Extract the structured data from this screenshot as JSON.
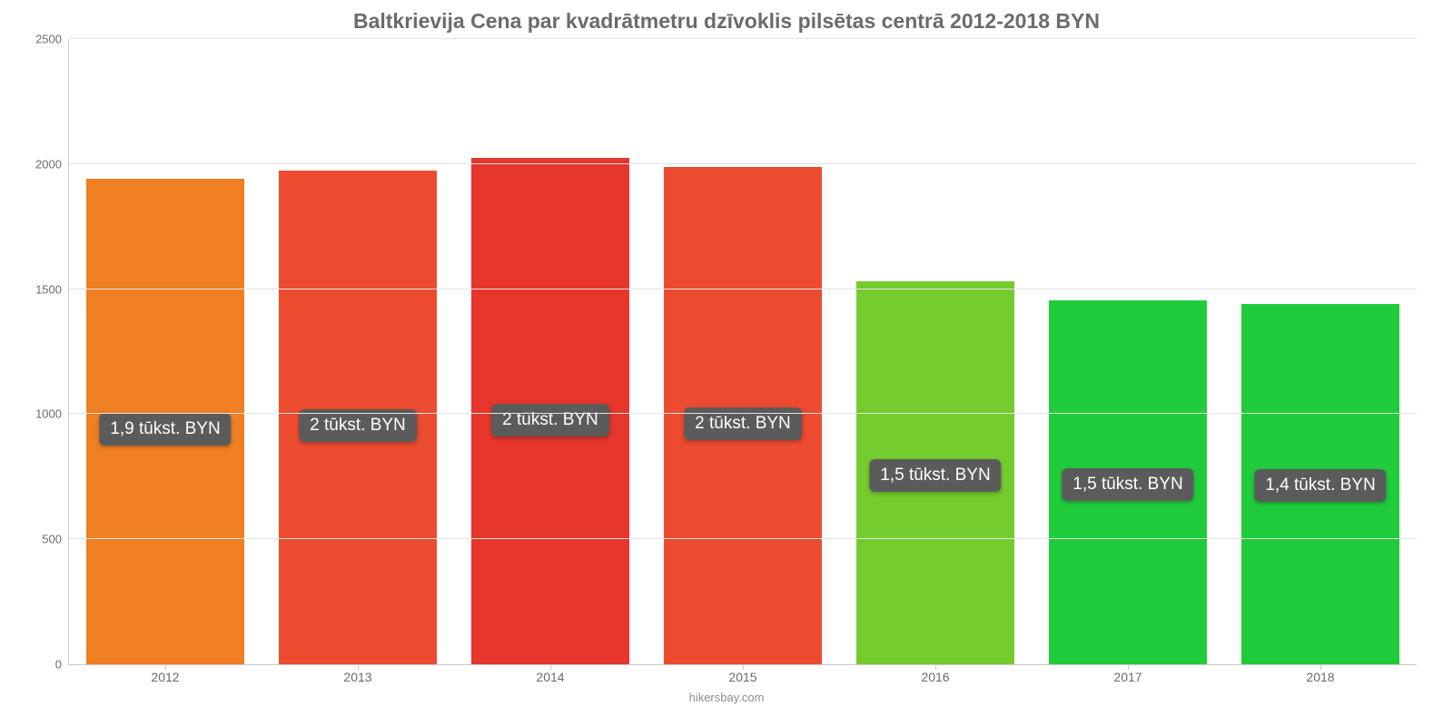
{
  "chart": {
    "type": "bar",
    "title": "Baltkrievija Cena par kvadrātmetru dzīvoklis pilsētas centrā 2012-2018 BYN",
    "title_fontsize": 23,
    "title_color": "#6b6b6b",
    "categories": [
      "2012",
      "2013",
      "2014",
      "2015",
      "2016",
      "2017",
      "2018"
    ],
    "values": [
      1940,
      1975,
      2025,
      1990,
      1530,
      1455,
      1440
    ],
    "bar_colors": [
      "#ef7f22",
      "#ec4b2f",
      "#e6352b",
      "#ec4b2f",
      "#74cb2e",
      "#20cc3b",
      "#20cc3b"
    ],
    "value_labels": [
      "1,9 tūkst. BYN",
      "2 tūkst. BYN",
      "2 tūkst. BYN",
      "2 tūkst. BYN",
      "1,5 tūkst. BYN",
      "1,5 tūkst. BYN",
      "1,4 tūkst. BYN"
    ],
    "value_label_fontsize": 19,
    "value_label_bg": "#5b5b5b",
    "value_label_color": "#ffffff",
    "ylim": [
      0,
      2500
    ],
    "yticks": [
      0,
      500,
      1000,
      1500,
      2000,
      2500
    ],
    "ytick_fontsize": 13,
    "xtick_fontsize": 14,
    "axis_label_color": "#6b6b6b",
    "grid_color": "#e3e3e3",
    "axis_line_color": "#c9c9c9",
    "background_color": "#ffffff",
    "bar_width": 0.82,
    "source": "hikersbay.com",
    "source_color": "#8d8d8d",
    "source_fontsize": 13
  }
}
